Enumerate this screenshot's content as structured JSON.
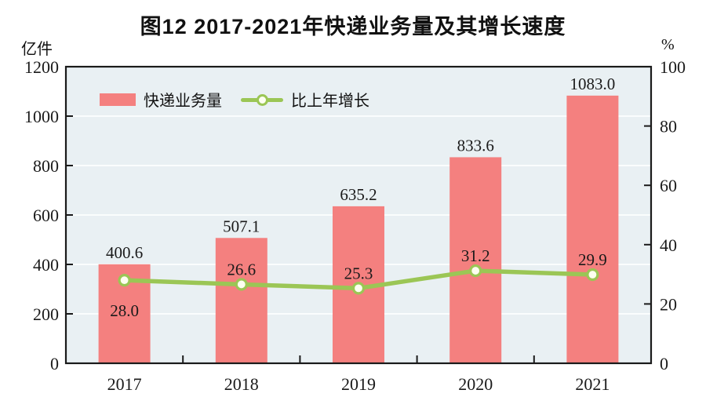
{
  "figure": {
    "title": "图12  2017-2021年快递业务量及其增长速度",
    "left_axis_unit": "亿件",
    "right_axis_unit": "%"
  },
  "legend": {
    "bar_label": "快递业务量",
    "line_label": "比上年增长"
  },
  "chart_data": {
    "type": "bar",
    "title": "图12 2017-2021年快递业务量及其增长速度",
    "categories": [
      "2017",
      "2018",
      "2019",
      "2020",
      "2021"
    ],
    "series": [
      {
        "name": "快递业务量",
        "type": "bar",
        "axis": "left",
        "values": [
          400.6,
          507.1,
          635.2,
          833.6,
          1083.0
        ],
        "labels": [
          "400.6",
          "507.1",
          "635.2",
          "833.6",
          "1083.0"
        ]
      },
      {
        "name": "比上年增长",
        "type": "line",
        "axis": "right",
        "values": [
          28.0,
          26.6,
          25.3,
          31.2,
          29.9
        ],
        "labels": [
          "28.0",
          "26.6",
          "25.3",
          "31.2",
          "29.9"
        ],
        "label_position": [
          "below",
          "above",
          "above",
          "above",
          "above"
        ]
      }
    ],
    "left_axis": {
      "unit": "亿件",
      "min": 0,
      "max": 1200,
      "ticks": [
        0,
        200,
        400,
        600,
        800,
        1000,
        1200
      ]
    },
    "right_axis": {
      "unit": "%",
      "min": 0,
      "max": 100,
      "ticks": [
        0,
        20,
        40,
        60,
        80,
        100
      ]
    },
    "grid": true,
    "legend_position": "top-left-inside",
    "colors": {
      "bar": "#f4807f",
      "line": "#9bc655",
      "marker_fill": "#fdfff0",
      "plot_bg": "#e9f0f3",
      "grid_line": "#fafdfd",
      "axis": "#1a1a1a"
    }
  }
}
